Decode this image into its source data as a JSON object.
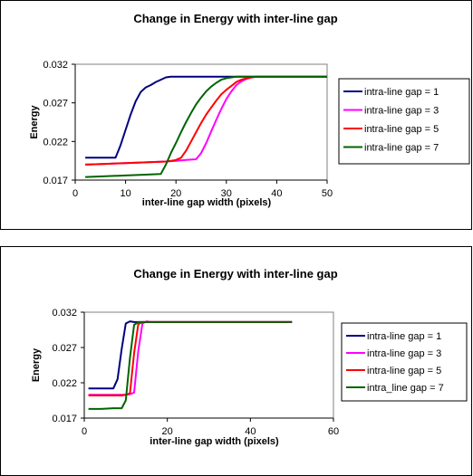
{
  "chart_data": [
    {
      "type": "line",
      "title": "Change in Energy with inter-line gap",
      "xlabel": "inter-line gap width (pixels)",
      "ylabel": "Energy",
      "xlim": [
        0,
        50
      ],
      "ylim": [
        0.017,
        0.032
      ],
      "xticks": [
        0,
        10,
        20,
        30,
        40,
        50
      ],
      "yticks": [
        0.017,
        0.022,
        0.027,
        0.032
      ],
      "ytick_labels": [
        "0.017",
        "0.022",
        "0.027",
        "0.032"
      ],
      "grid": false,
      "legend_position": "right",
      "series": [
        {
          "name": "intra-line gap = 1",
          "color": "#000080",
          "x": [
            2,
            4,
            6,
            8,
            9,
            10,
            11,
            12,
            13,
            14,
            15,
            16,
            17,
            18,
            19,
            20,
            22,
            24,
            26,
            28,
            30,
            32,
            34,
            36,
            38,
            40,
            42,
            44,
            46,
            48,
            50
          ],
          "y": [
            0.0199,
            0.0199,
            0.0199,
            0.0199,
            0.0215,
            0.0235,
            0.0255,
            0.0272,
            0.0284,
            0.029,
            0.0293,
            0.0297,
            0.03,
            0.0303,
            0.0304,
            0.0304,
            0.0304,
            0.0304,
            0.0304,
            0.0304,
            0.0304,
            0.0304,
            0.0304,
            0.0304,
            0.0304,
            0.0304,
            0.0304,
            0.0304,
            0.0304,
            0.0304,
            0.0304
          ]
        },
        {
          "name": "intra-line gap = 3",
          "color": "#FF00FF",
          "x": [
            2,
            6,
            10,
            14,
            18,
            20,
            22,
            24,
            25,
            26,
            27,
            28,
            29,
            30,
            31,
            32,
            33,
            34,
            35,
            36,
            38,
            40,
            42,
            44,
            46,
            48,
            50
          ],
          "y": [
            0.019,
            0.0191,
            0.0192,
            0.0193,
            0.0194,
            0.0195,
            0.0196,
            0.0197,
            0.0205,
            0.0218,
            0.0233,
            0.0248,
            0.0262,
            0.0275,
            0.0285,
            0.0293,
            0.0298,
            0.0301,
            0.0303,
            0.0304,
            0.0304,
            0.0304,
            0.0304,
            0.0304,
            0.0304,
            0.0304,
            0.0304
          ]
        },
        {
          "name": "intra-line gap = 5",
          "color": "#FF0000",
          "x": [
            2,
            6,
            10,
            14,
            18,
            19,
            20,
            21,
            22,
            23,
            24,
            25,
            26,
            27,
            28,
            29,
            30,
            31,
            32,
            33,
            34,
            35,
            36,
            38,
            40,
            42,
            44,
            46,
            48,
            50
          ],
          "y": [
            0.019,
            0.0191,
            0.0192,
            0.0193,
            0.0194,
            0.0195,
            0.0196,
            0.0199,
            0.0208,
            0.022,
            0.0232,
            0.0244,
            0.0255,
            0.0264,
            0.0273,
            0.0281,
            0.0287,
            0.0292,
            0.0297,
            0.03,
            0.0302,
            0.0303,
            0.0304,
            0.0304,
            0.0304,
            0.0304,
            0.0304,
            0.0304,
            0.0304,
            0.0304
          ]
        },
        {
          "name": "intra-line gap = 7",
          "color": "#006400",
          "x": [
            2,
            6,
            10,
            14,
            17,
            18,
            19,
            20,
            21,
            22,
            23,
            24,
            25,
            26,
            27,
            28,
            29,
            30,
            31,
            32,
            34,
            36,
            38,
            40,
            42,
            44,
            46,
            48,
            50
          ],
          "y": [
            0.0174,
            0.0175,
            0.0176,
            0.0177,
            0.0178,
            0.019,
            0.0205,
            0.0218,
            0.0232,
            0.0245,
            0.0257,
            0.0268,
            0.0277,
            0.0285,
            0.0291,
            0.0296,
            0.03,
            0.0302,
            0.0303,
            0.0304,
            0.0304,
            0.0304,
            0.0304,
            0.0304,
            0.0304,
            0.0304,
            0.0304,
            0.0304,
            0.0304
          ]
        }
      ]
    },
    {
      "type": "line",
      "title": "Change in Energy with inter-line gap",
      "xlabel": "inter-line gap width (pixels)",
      "ylabel": "Energy",
      "xlim": [
        0,
        60
      ],
      "ylim": [
        0.017,
        0.032
      ],
      "xticks": [
        0,
        20,
        40,
        60
      ],
      "yticks": [
        0.017,
        0.022,
        0.027,
        0.032
      ],
      "ytick_labels": [
        "0.017",
        "0.022",
        "0.027",
        "0.032"
      ],
      "grid": false,
      "legend_position": "right",
      "series": [
        {
          "name": "intra-line gap = 1",
          "color": "#000080",
          "x": [
            1,
            3,
            5,
            7,
            8,
            9,
            10,
            11,
            12,
            14,
            16,
            18,
            20,
            30,
            40,
            50
          ],
          "y": [
            0.0212,
            0.0212,
            0.0212,
            0.0212,
            0.0225,
            0.0268,
            0.0304,
            0.0307,
            0.0306,
            0.0306,
            0.0306,
            0.0306,
            0.0306,
            0.0306,
            0.0306,
            0.0306
          ]
        },
        {
          "name": "intra-line gap = 3",
          "color": "#FF00FF",
          "x": [
            1,
            4,
            7,
            9,
            10,
            11,
            12,
            13,
            14,
            15,
            16,
            18,
            20,
            30,
            40,
            50
          ],
          "y": [
            0.0203,
            0.0203,
            0.0203,
            0.0203,
            0.0203,
            0.0204,
            0.0206,
            0.0265,
            0.0304,
            0.0307,
            0.0306,
            0.0306,
            0.0306,
            0.0306,
            0.0306,
            0.0306
          ]
        },
        {
          "name": "intra-line gap = 5",
          "color": "#FF0000",
          "x": [
            1,
            4,
            7,
            9,
            10,
            11,
            12,
            13,
            14,
            16,
            18,
            20,
            30,
            40,
            50
          ],
          "y": [
            0.0202,
            0.0202,
            0.0202,
            0.0202,
            0.0203,
            0.0205,
            0.0262,
            0.0303,
            0.0306,
            0.0306,
            0.0306,
            0.0306,
            0.0306,
            0.0306,
            0.0306
          ]
        },
        {
          "name": "intra_line gap = 7",
          "color": "#006400",
          "x": [
            1,
            4,
            7,
            8,
            9,
            10,
            11,
            12,
            13,
            14,
            16,
            18,
            20,
            30,
            40,
            50
          ],
          "y": [
            0.0183,
            0.0183,
            0.0184,
            0.0184,
            0.0184,
            0.0195,
            0.0255,
            0.0302,
            0.0306,
            0.0306,
            0.0306,
            0.0306,
            0.0306,
            0.0306,
            0.0306,
            0.0306
          ]
        }
      ]
    }
  ]
}
